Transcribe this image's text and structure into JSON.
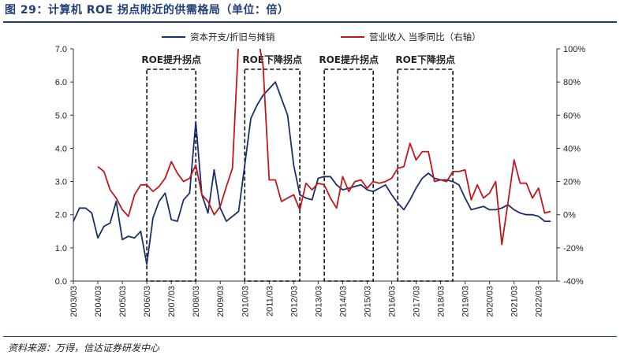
{
  "page": {
    "title": "图 29：计算机 ROE 拐点附近的供需格局（单位：倍）",
    "source": "资料来源：万得，信达证券研发中心"
  },
  "colors": {
    "navy": "#1a2f6b",
    "red": "#c0171c",
    "title": "#1f3f77"
  },
  "chart_data": {
    "type": "line",
    "title": "计算机 ROE 拐点附近的供需格局（单位：倍）",
    "x_ticks": [
      "2003/03",
      "2004/03",
      "2005/03",
      "2006/03",
      "2007/03",
      "2008/03",
      "2009/03",
      "2010/03",
      "2011/03",
      "2012/03",
      "2013/03",
      "2014/03",
      "2015/03",
      "2016/03",
      "2017/03",
      "2018/03",
      "2019/03",
      "2020/03",
      "2021/03",
      "2022/03"
    ],
    "x_range": [
      2003.0,
      2022.75
    ],
    "left_axis": {
      "min": 0,
      "max": 7,
      "ticks": [
        "0.0",
        "1.0",
        "2.0",
        "3.0",
        "4.0",
        "5.0",
        "6.0",
        "7.0"
      ]
    },
    "right_axis": {
      "min": -40,
      "max": 100,
      "ticks": [
        "-40%",
        "-20%",
        "0%",
        "20%",
        "40%",
        "60%",
        "80%",
        "100%"
      ]
    },
    "legend": {
      "placement": "top",
      "entries": [
        "资本开支/折旧与摊销",
        "营业收入 当季同比（右轴）"
      ]
    },
    "series": [
      {
        "name": "资本开支/折旧与摊销",
        "axis": "left",
        "color": "#1a2f6b",
        "x": [
          2003.0,
          2003.25,
          2003.5,
          2003.75,
          2004.0,
          2004.25,
          2004.5,
          2004.75,
          2005.0,
          2005.25,
          2005.5,
          2005.75,
          2006.0,
          2006.25,
          2006.5,
          2006.75,
          2007.0,
          2007.25,
          2007.5,
          2007.75,
          2008.0,
          2008.25,
          2008.5,
          2008.75,
          2009.0,
          2009.25,
          2009.5,
          2009.75,
          2010.0,
          2010.25,
          2010.5,
          2010.75,
          2011.0,
          2011.25,
          2011.5,
          2011.75,
          2012.0,
          2012.25,
          2012.5,
          2012.75,
          2013.0,
          2013.25,
          2013.5,
          2013.75,
          2014.0,
          2014.25,
          2014.5,
          2014.75,
          2015.0,
          2015.25,
          2015.5,
          2015.75,
          2016.0,
          2016.25,
          2016.5,
          2016.75,
          2017.0,
          2017.25,
          2017.5,
          2017.75,
          2018.0,
          2018.25,
          2018.5,
          2018.75,
          2019.0,
          2019.25,
          2019.5,
          2019.75,
          2020.0,
          2020.25,
          2020.5,
          2020.75,
          2021.0,
          2021.25,
          2021.5,
          2021.75,
          2022.0,
          2022.25,
          2022.5
        ],
        "values": [
          1.8,
          2.2,
          2.2,
          2.05,
          1.3,
          1.65,
          1.75,
          2.4,
          1.25,
          1.35,
          1.3,
          1.5,
          0.5,
          1.9,
          2.4,
          2.65,
          1.85,
          1.8,
          2.45,
          2.65,
          4.8,
          2.6,
          2.05,
          3.35,
          2.2,
          1.8,
          1.95,
          2.1,
          3.5,
          4.9,
          5.3,
          5.6,
          5.8,
          6.0,
          5.5,
          5.0,
          3.5,
          2.6,
          2.5,
          2.45,
          3.1,
          3.15,
          3.15,
          2.9,
          2.75,
          2.8,
          2.85,
          2.9,
          2.75,
          2.7,
          2.8,
          2.9,
          2.6,
          2.35,
          2.15,
          2.45,
          2.8,
          3.1,
          3.25,
          3.1,
          3.05,
          3.05,
          3.0,
          2.9,
          2.5,
          2.15,
          2.2,
          2.25,
          2.15,
          2.15,
          2.2,
          2.3,
          2.15,
          2.05,
          2.0,
          2.0,
          1.95,
          1.8,
          1.8
        ]
      },
      {
        "name": "营业收入 当季同比（右轴）",
        "axis": "right",
        "color": "#c0171c",
        "x": [
          2004.0,
          2004.25,
          2004.5,
          2004.75,
          2005.0,
          2005.25,
          2005.5,
          2005.75,
          2006.0,
          2006.25,
          2006.5,
          2006.75,
          2007.0,
          2007.25,
          2007.5,
          2007.75,
          2008.0,
          2008.25,
          2008.5,
          2008.75,
          2009.0,
          2009.25,
          2009.5,
          2009.75,
          2010.0,
          2010.25,
          2010.5,
          2010.75,
          2011.0,
          2011.25,
          2011.5,
          2011.75,
          2012.0,
          2012.25,
          2012.5,
          2012.75,
          2013.0,
          2013.25,
          2013.5,
          2013.75,
          2014.0,
          2014.25,
          2014.5,
          2014.75,
          2015.0,
          2015.25,
          2015.5,
          2015.75,
          2016.0,
          2016.25,
          2016.5,
          2016.75,
          2017.0,
          2017.25,
          2017.5,
          2017.75,
          2018.0,
          2018.25,
          2018.5,
          2018.75,
          2019.0,
          2019.25,
          2019.5,
          2019.75,
          2020.0,
          2020.25,
          2020.5,
          2020.75,
          2021.0,
          2021.25,
          2021.5,
          2021.75,
          2022.0,
          2022.25,
          2022.5
        ],
        "values": [
          29,
          26,
          15,
          10,
          3,
          -1,
          12,
          18,
          18,
          14,
          17,
          22,
          32,
          25,
          20,
          22,
          30,
          12,
          8,
          0,
          5,
          17,
          28,
          105,
          108,
          150,
          110,
          90,
          21,
          21,
          8,
          10,
          12,
          3,
          19,
          15,
          19,
          18,
          10,
          4,
          23,
          14,
          20,
          21,
          16,
          20,
          19,
          20,
          22,
          28,
          29,
          43,
          33,
          38,
          38,
          20,
          21,
          20,
          26,
          26,
          27,
          9,
          18,
          10,
          13,
          20,
          -18,
          7,
          33,
          19,
          19,
          10,
          16,
          1,
          2
        ]
      }
    ],
    "annotations": [
      {
        "label": "ROE提升拐点",
        "x_start": 2006.0,
        "x_end": 2008.0
      },
      {
        "label": "ROE下降拐点",
        "x_start": 2010.0,
        "x_end": 2012.25
      },
      {
        "label": "ROE提升拐点",
        "x_start": 2013.25,
        "x_end": 2015.25
      },
      {
        "label": "ROE下降拐点",
        "x_start": 2016.25,
        "x_end": 2018.5
      }
    ]
  }
}
